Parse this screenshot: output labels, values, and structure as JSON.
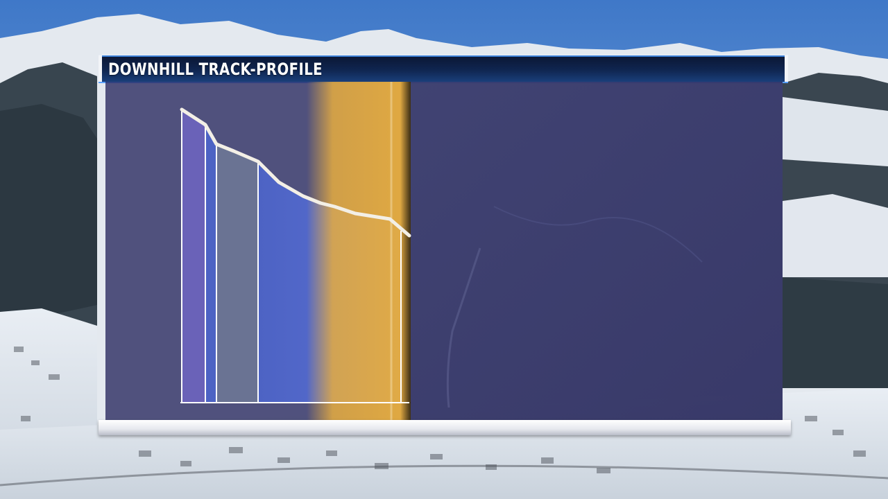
{
  "title": "DOWNHILL TRACK-PROFILE",
  "colors": {
    "panel": "#26265c",
    "section_purple": "#6a62b8",
    "section_blue": "#4d63c4",
    "section_gray": "#6a7393",
    "highlight": "#e7ad3f",
    "profile_line": "#f3efe6"
  },
  "icons": [
    "track-profile-graphic",
    "mountain-background"
  ]
}
